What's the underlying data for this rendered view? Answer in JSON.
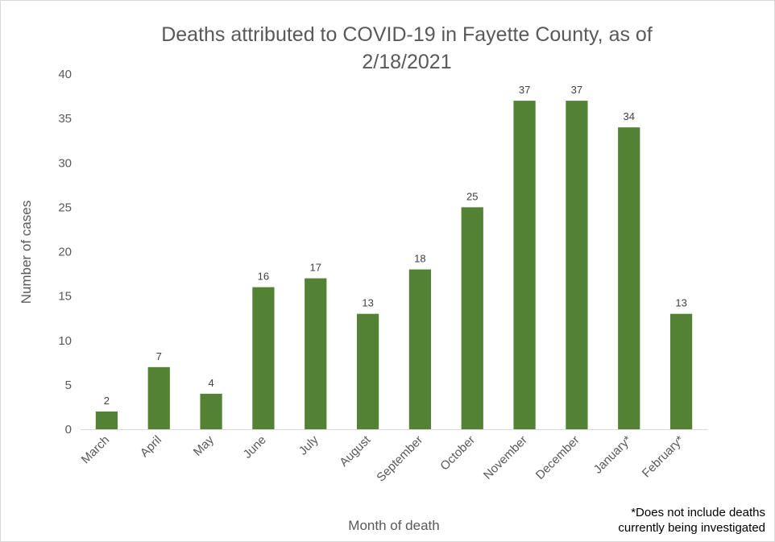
{
  "chart_data": {
    "type": "bar",
    "title_lines": [
      "Deaths attributed to COVID-19 in Fayette County, as of",
      "2/18/2021"
    ],
    "xlabel": "Month of death",
    "ylabel": "Number of cases",
    "ylim": [
      0,
      40
    ],
    "yticks": [
      0,
      5,
      10,
      15,
      20,
      25,
      30,
      35,
      40
    ],
    "categories": [
      "March",
      "April",
      "May",
      "June",
      "July",
      "August",
      "September",
      "October",
      "November",
      "December",
      "January*",
      "February*"
    ],
    "values": [
      2,
      7,
      4,
      16,
      17,
      13,
      18,
      25,
      37,
      37,
      34,
      13
    ],
    "data_labels": true,
    "grid": false,
    "legend": "none",
    "bar_color": "#548235",
    "footnote_lines": [
      "*Does not include deaths",
      "currently being investigated"
    ]
  }
}
